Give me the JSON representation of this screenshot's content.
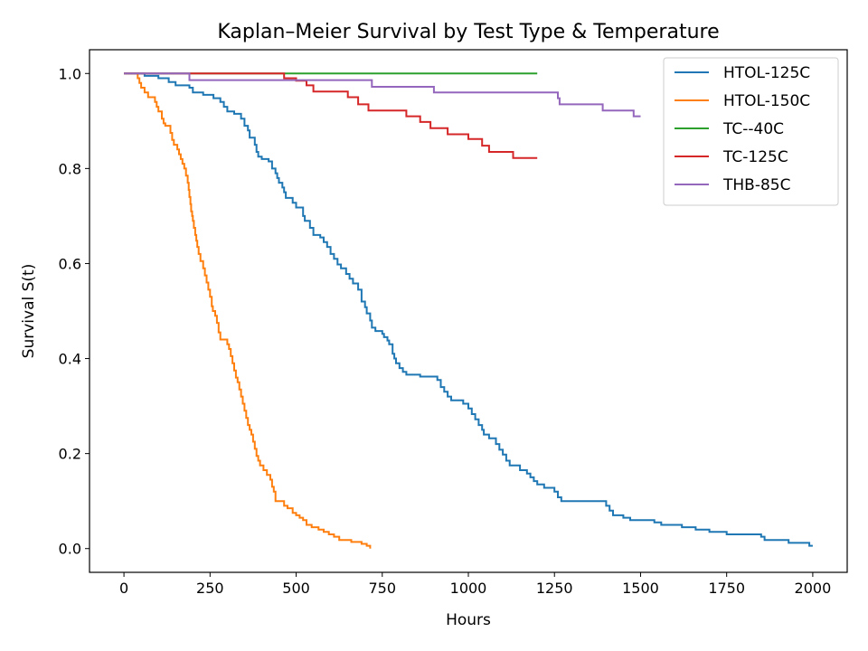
{
  "chart_data": {
    "type": "line",
    "step": true,
    "title": "Kaplan–Meier Survival by Test Type & Temperature",
    "xlabel": "Hours",
    "ylabel": "Survival S(t)",
    "xlim": [
      -100,
      2100
    ],
    "ylim": [
      -0.05,
      1.05
    ],
    "xticks": [
      0,
      250,
      500,
      750,
      1000,
      1250,
      1500,
      1750,
      2000
    ],
    "xtick_labels": [
      "0",
      "250",
      "500",
      "750",
      "1000",
      "1250",
      "1500",
      "1750",
      "2000"
    ],
    "yticks": [
      0.0,
      0.2,
      0.4,
      0.6,
      0.8,
      1.0
    ],
    "ytick_labels": [
      "0.0",
      "0.2",
      "0.4",
      "0.6",
      "0.8",
      "1.0"
    ],
    "grid": false,
    "legend_position": "top-right",
    "series": [
      {
        "name": "HTOL-125C",
        "color": "#1f77b4",
        "points": [
          [
            0,
            1.0
          ],
          [
            60,
            0.995
          ],
          [
            100,
            0.99
          ],
          [
            130,
            0.982
          ],
          [
            150,
            0.975
          ],
          [
            190,
            0.97
          ],
          [
            200,
            0.96
          ],
          [
            230,
            0.955
          ],
          [
            260,
            0.948
          ],
          [
            280,
            0.94
          ],
          [
            290,
            0.93
          ],
          [
            300,
            0.92
          ],
          [
            320,
            0.915
          ],
          [
            340,
            0.905
          ],
          [
            350,
            0.89
          ],
          [
            360,
            0.88
          ],
          [
            365,
            0.865
          ],
          [
            380,
            0.85
          ],
          [
            385,
            0.835
          ],
          [
            390,
            0.825
          ],
          [
            400,
            0.82
          ],
          [
            420,
            0.815
          ],
          [
            430,
            0.8
          ],
          [
            440,
            0.79
          ],
          [
            445,
            0.78
          ],
          [
            450,
            0.77
          ],
          [
            460,
            0.76
          ],
          [
            465,
            0.75
          ],
          [
            470,
            0.738
          ],
          [
            490,
            0.728
          ],
          [
            500,
            0.718
          ],
          [
            520,
            0.7
          ],
          [
            525,
            0.69
          ],
          [
            540,
            0.675
          ],
          [
            550,
            0.66
          ],
          [
            570,
            0.655
          ],
          [
            580,
            0.645
          ],
          [
            590,
            0.635
          ],
          [
            600,
            0.62
          ],
          [
            610,
            0.61
          ],
          [
            620,
            0.598
          ],
          [
            630,
            0.59
          ],
          [
            645,
            0.578
          ],
          [
            655,
            0.568
          ],
          [
            665,
            0.558
          ],
          [
            680,
            0.545
          ],
          [
            690,
            0.52
          ],
          [
            700,
            0.508
          ],
          [
            705,
            0.495
          ],
          [
            715,
            0.48
          ],
          [
            720,
            0.465
          ],
          [
            730,
            0.458
          ],
          [
            750,
            0.452
          ],
          [
            755,
            0.445
          ],
          [
            765,
            0.438
          ],
          [
            770,
            0.43
          ],
          [
            780,
            0.41
          ],
          [
            785,
            0.4
          ],
          [
            790,
            0.39
          ],
          [
            800,
            0.38
          ],
          [
            810,
            0.372
          ],
          [
            820,
            0.366
          ],
          [
            860,
            0.362
          ],
          [
            910,
            0.355
          ],
          [
            920,
            0.34
          ],
          [
            930,
            0.33
          ],
          [
            940,
            0.32
          ],
          [
            950,
            0.312
          ],
          [
            985,
            0.305
          ],
          [
            1000,
            0.295
          ],
          [
            1010,
            0.283
          ],
          [
            1020,
            0.272
          ],
          [
            1030,
            0.26
          ],
          [
            1040,
            0.25
          ],
          [
            1045,
            0.24
          ],
          [
            1060,
            0.232
          ],
          [
            1080,
            0.22
          ],
          [
            1090,
            0.208
          ],
          [
            1100,
            0.198
          ],
          [
            1110,
            0.185
          ],
          [
            1120,
            0.175
          ],
          [
            1150,
            0.165
          ],
          [
            1170,
            0.158
          ],
          [
            1180,
            0.15
          ],
          [
            1190,
            0.142
          ],
          [
            1200,
            0.135
          ],
          [
            1220,
            0.128
          ],
          [
            1250,
            0.12
          ],
          [
            1260,
            0.108
          ],
          [
            1270,
            0.1
          ],
          [
            1400,
            0.09
          ],
          [
            1410,
            0.08
          ],
          [
            1420,
            0.07
          ],
          [
            1450,
            0.065
          ],
          [
            1470,
            0.06
          ],
          [
            1540,
            0.055
          ],
          [
            1560,
            0.05
          ],
          [
            1620,
            0.045
          ],
          [
            1660,
            0.04
          ],
          [
            1700,
            0.035
          ],
          [
            1750,
            0.03
          ],
          [
            1850,
            0.025
          ],
          [
            1860,
            0.018
          ],
          [
            1930,
            0.012
          ],
          [
            1990,
            0.006
          ],
          [
            2000,
            0.006
          ]
        ]
      },
      {
        "name": "HTOL-150C",
        "color": "#ff7f0e",
        "points": [
          [
            0,
            1.0
          ],
          [
            40,
            0.99
          ],
          [
            45,
            0.98
          ],
          [
            50,
            0.97
          ],
          [
            60,
            0.96
          ],
          [
            70,
            0.95
          ],
          [
            90,
            0.94
          ],
          [
            95,
            0.93
          ],
          [
            100,
            0.92
          ],
          [
            110,
            0.905
          ],
          [
            115,
            0.895
          ],
          [
            120,
            0.89
          ],
          [
            135,
            0.875
          ],
          [
            140,
            0.86
          ],
          [
            145,
            0.85
          ],
          [
            155,
            0.84
          ],
          [
            160,
            0.83
          ],
          [
            165,
            0.82
          ],
          [
            170,
            0.81
          ],
          [
            175,
            0.8
          ],
          [
            180,
            0.785
          ],
          [
            185,
            0.77
          ],
          [
            188,
            0.755
          ],
          [
            190,
            0.74
          ],
          [
            193,
            0.725
          ],
          [
            195,
            0.71
          ],
          [
            198,
            0.7
          ],
          [
            200,
            0.69
          ],
          [
            203,
            0.675
          ],
          [
            207,
            0.66
          ],
          [
            210,
            0.648
          ],
          [
            213,
            0.635
          ],
          [
            217,
            0.62
          ],
          [
            222,
            0.605
          ],
          [
            230,
            0.59
          ],
          [
            235,
            0.575
          ],
          [
            240,
            0.56
          ],
          [
            245,
            0.545
          ],
          [
            250,
            0.53
          ],
          [
            255,
            0.51
          ],
          [
            258,
            0.5
          ],
          [
            265,
            0.49
          ],
          [
            270,
            0.475
          ],
          [
            275,
            0.455
          ],
          [
            280,
            0.44
          ],
          [
            300,
            0.43
          ],
          [
            305,
            0.42
          ],
          [
            310,
            0.405
          ],
          [
            315,
            0.39
          ],
          [
            320,
            0.375
          ],
          [
            325,
            0.36
          ],
          [
            330,
            0.35
          ],
          [
            335,
            0.335
          ],
          [
            340,
            0.32
          ],
          [
            345,
            0.305
          ],
          [
            350,
            0.29
          ],
          [
            355,
            0.275
          ],
          [
            360,
            0.26
          ],
          [
            365,
            0.25
          ],
          [
            370,
            0.24
          ],
          [
            375,
            0.225
          ],
          [
            380,
            0.21
          ],
          [
            385,
            0.195
          ],
          [
            390,
            0.185
          ],
          [
            395,
            0.175
          ],
          [
            405,
            0.165
          ],
          [
            415,
            0.155
          ],
          [
            425,
            0.145
          ],
          [
            430,
            0.13
          ],
          [
            435,
            0.12
          ],
          [
            440,
            0.1
          ],
          [
            465,
            0.09
          ],
          [
            475,
            0.085
          ],
          [
            490,
            0.075
          ],
          [
            500,
            0.07
          ],
          [
            510,
            0.065
          ],
          [
            520,
            0.06
          ],
          [
            530,
            0.05
          ],
          [
            545,
            0.045
          ],
          [
            565,
            0.04
          ],
          [
            580,
            0.035
          ],
          [
            595,
            0.03
          ],
          [
            610,
            0.025
          ],
          [
            625,
            0.018
          ],
          [
            660,
            0.014
          ],
          [
            690,
            0.01
          ],
          [
            705,
            0.006
          ],
          [
            715,
            0.0
          ]
        ]
      },
      {
        "name": "TC--40C",
        "color": "#2ca02c",
        "points": [
          [
            0,
            1.0
          ],
          [
            1200,
            1.0
          ]
        ]
      },
      {
        "name": "TC-125C",
        "color": "#d62728",
        "points": [
          [
            0,
            1.0
          ],
          [
            465,
            0.99
          ],
          [
            500,
            0.985
          ],
          [
            530,
            0.975
          ],
          [
            550,
            0.962
          ],
          [
            610,
            0.962
          ],
          [
            650,
            0.95
          ],
          [
            680,
            0.935
          ],
          [
            710,
            0.922
          ],
          [
            820,
            0.91
          ],
          [
            860,
            0.898
          ],
          [
            890,
            0.885
          ],
          [
            940,
            0.872
          ],
          [
            1000,
            0.862
          ],
          [
            1040,
            0.848
          ],
          [
            1060,
            0.835
          ],
          [
            1130,
            0.822
          ],
          [
            1200,
            0.822
          ]
        ]
      },
      {
        "name": "THB-85C",
        "color": "#9467bd",
        "points": [
          [
            0,
            1.0
          ],
          [
            190,
            0.986
          ],
          [
            720,
            0.972
          ],
          [
            900,
            0.96
          ],
          [
            1260,
            0.948
          ],
          [
            1265,
            0.935
          ],
          [
            1390,
            0.922
          ],
          [
            1480,
            0.91
          ],
          [
            1500,
            0.91
          ]
        ]
      }
    ]
  }
}
